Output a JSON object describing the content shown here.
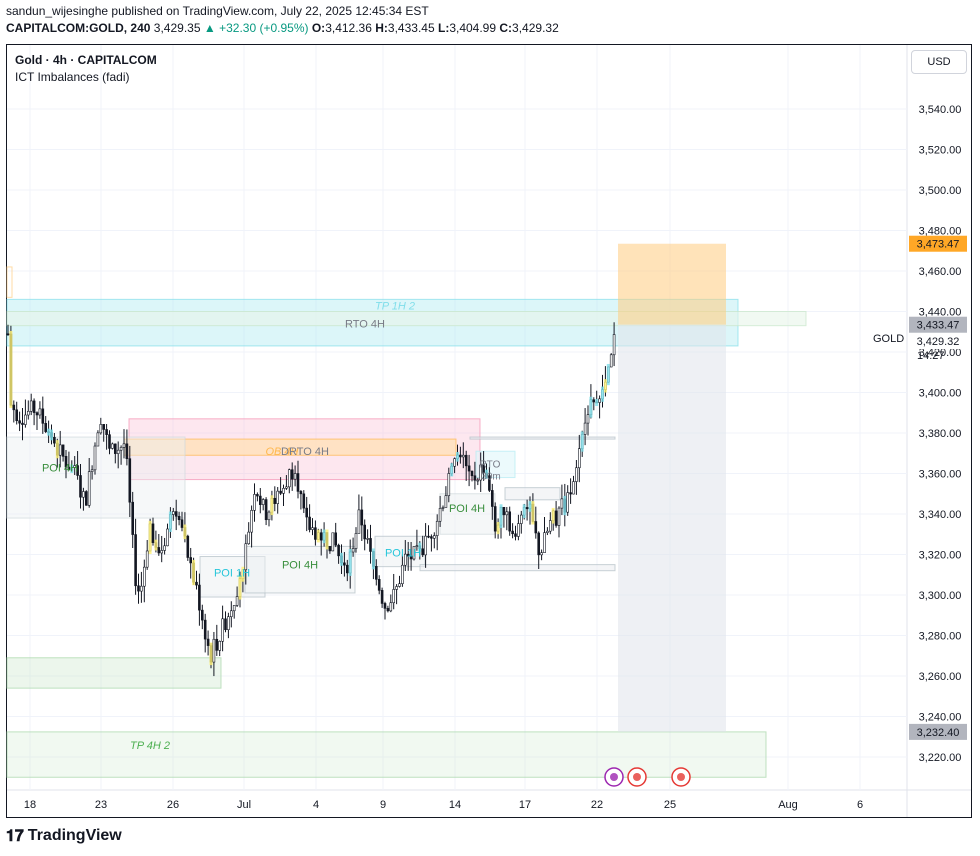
{
  "header": {
    "published": "sandun_wijesinghe published on TradingView.com, July 22, 2025 12:45:34 EST",
    "symbol": "CAPITALCOM:GOLD, 240",
    "last": "3,429.35",
    "change": "+32.30 (+0.95%)",
    "o_label": "O:",
    "o": "3,412.36",
    "h_label": "H:",
    "h": "3,433.45",
    "l_label": "L:",
    "l": "3,404.99",
    "c_label": "C:",
    "c": "3,429.32"
  },
  "legend": {
    "title": "Gold · 4h · CAPITALCOM",
    "indicator": "ICT Imbalances (fadi)"
  },
  "currency_button": "USD",
  "footer": {
    "brand": "TradingView"
  },
  "colors": {
    "up": "#089981",
    "accent_orange": "#ff9800",
    "zone_cyan": "#b2ebf2",
    "zone_pink": "#f8bbd0",
    "zone_green": "#c8e6c9",
    "zone_gray": "#e0e3eb"
  },
  "chart_data": {
    "type": "candlestick",
    "symbol": "GOLD",
    "timeframe": "4h",
    "ylim": [
      3210,
      3555
    ],
    "y_ticks": [
      3220,
      3240,
      3260,
      3280,
      3300,
      3320,
      3340,
      3360,
      3380,
      3400,
      3420,
      3440,
      3460,
      3480,
      3500,
      3520,
      3540
    ],
    "y_tick_labels": [
      "3,220.00",
      "3,240.00",
      "3,260.00",
      "3,280.00",
      "3,300.00",
      "3,320.00",
      "3,340.00",
      "3,360.00",
      "3,380.00",
      "3,400.00",
      "3,420.00",
      "3,440.00",
      "3,460.00",
      "3,480.00",
      "3,500.00",
      "3,520.00",
      "3,540.00"
    ],
    "x_tick_labels": [
      "18",
      "23",
      "26",
      "Jul",
      "4",
      "9",
      "14",
      "17",
      "22",
      "25",
      "Aug",
      "6"
    ],
    "price_labels": [
      {
        "text": "3,473.47",
        "value": 3473.47,
        "style": "orange"
      },
      {
        "text": "3,433.47",
        "value": 3433.47,
        "style": "gray"
      },
      {
        "text": "3,429.32",
        "value": 3429.32,
        "style": "plain"
      },
      {
        "text": "3,232.40",
        "value": 3232.4,
        "style": "gray"
      }
    ],
    "countdown": "14:27",
    "last_label": "GOLD",
    "zone_labels": [
      {
        "text": "TP 1H 2",
        "style": "cyan-italic"
      },
      {
        "text": "RTO 4H",
        "style": "gray"
      },
      {
        "text": "OB 4H",
        "style": "orange-italic"
      },
      {
        "text": "DRTO 4H",
        "style": "gray"
      },
      {
        "text": "POI 4H",
        "style": "green"
      },
      {
        "text": "RTO",
        "style": "gray"
      },
      {
        "text": "30m",
        "style": "gray"
      },
      {
        "text": "POI 4H",
        "style": "green"
      },
      {
        "text": "POI 1H",
        "style": "cyan"
      },
      {
        "text": "POI 4H",
        "style": "green"
      },
      {
        "text": "POI 1H",
        "style": "cyan"
      },
      {
        "text": "TP 4H 2",
        "style": "green-italic"
      }
    ],
    "grid": true,
    "position_tool": {
      "entry": 3433.47,
      "target": 3473.47,
      "stop": 3232.4,
      "direction": "long"
    }
  }
}
